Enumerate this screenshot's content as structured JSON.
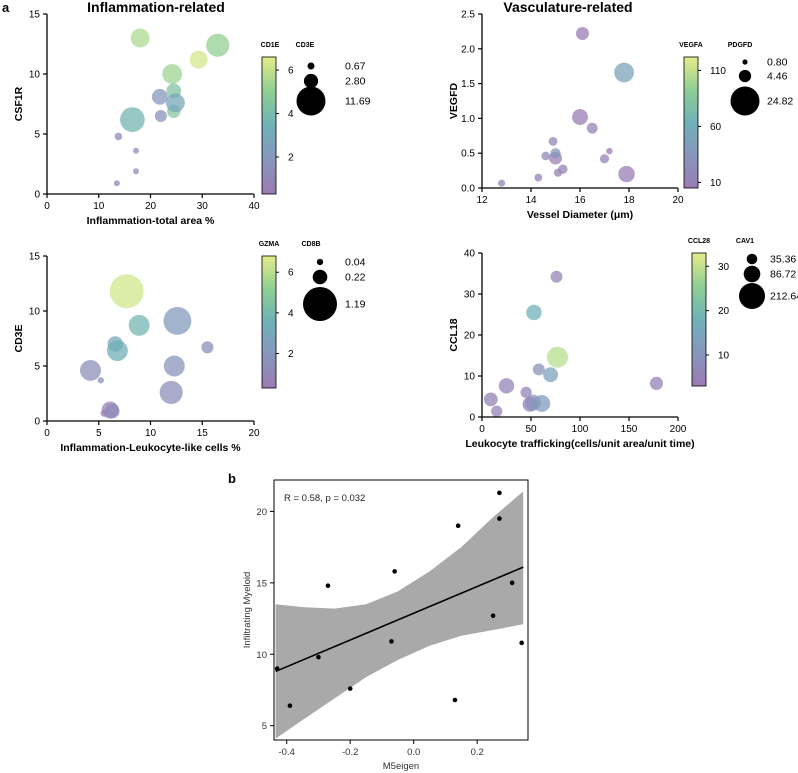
{
  "figure": {
    "panel_a_label": "a",
    "panel_b_label": "b",
    "section_left_title": "Inflammation-related",
    "section_right_title": "Vasculature-related"
  },
  "chart_data": [
    {
      "id": "p1",
      "type": "bubble",
      "title": "Inflammation-related",
      "xlabel": "Inflammation-total area %",
      "ylabel": "CSF1R",
      "xlim": [
        0,
        40
      ],
      "ylim": [
        0,
        15
      ],
      "xticks": [
        "0",
        "10",
        "20",
        "30",
        "40"
      ],
      "yticks": [
        "0",
        "5",
        "10",
        "15"
      ],
      "color_var": "CD1E",
      "color_range": [
        0.3,
        6.6
      ],
      "colorbar_ticks": [
        {
          "v": 2,
          "t": "2"
        },
        {
          "v": 4,
          "t": "4"
        },
        {
          "v": 6,
          "t": "6"
        }
      ],
      "size_var": "CD3E",
      "size_legend": [
        {
          "v": 0.67,
          "t": "0.67"
        },
        {
          "v": 2.8,
          "t": "2.80"
        },
        {
          "v": 11.69,
          "t": "11.69"
        }
      ],
      "points": [
        {
          "x": 13.5,
          "y": 0.9,
          "s": 0.5,
          "c": 1.0
        },
        {
          "x": 13.8,
          "y": 4.8,
          "s": 0.8,
          "c": 1.2
        },
        {
          "x": 17.2,
          "y": 3.6,
          "s": 0.5,
          "c": 1.2
        },
        {
          "x": 17.2,
          "y": 1.9,
          "s": 0.5,
          "c": 1.3
        },
        {
          "x": 16.5,
          "y": 6.2,
          "s": 8.5,
          "c": 3.7
        },
        {
          "x": 18.0,
          "y": 13.0,
          "s": 5.0,
          "c": 5.6
        },
        {
          "x": 21.8,
          "y": 8.1,
          "s": 3.5,
          "c": 2.0
        },
        {
          "x": 22.0,
          "y": 6.5,
          "s": 2.0,
          "c": 1.7
        },
        {
          "x": 24.2,
          "y": 10.0,
          "s": 5.5,
          "c": 5.3
        },
        {
          "x": 24.5,
          "y": 8.6,
          "s": 3.0,
          "c": 4.3
        },
        {
          "x": 24.5,
          "y": 6.9,
          "s": 2.5,
          "c": 4.6
        },
        {
          "x": 24.8,
          "y": 7.6,
          "s": 5.0,
          "c": 2.8
        },
        {
          "x": 29.3,
          "y": 11.2,
          "s": 4.5,
          "c": 6.3
        },
        {
          "x": 33.0,
          "y": 12.4,
          "s": 7.5,
          "c": 5.1
        }
      ]
    },
    {
      "id": "p2",
      "type": "bubble",
      "title": "Vasculature-related",
      "xlabel": "Vessel Diameter (μm)",
      "ylabel": "VEGFD",
      "xlim": [
        12,
        20
      ],
      "ylim": [
        0,
        2.5
      ],
      "xticks": [
        "12",
        "14",
        "16",
        "18",
        "20"
      ],
      "yticks": [
        "0.0",
        "0.5",
        "1.0",
        "1.5",
        "2.0",
        "2.5"
      ],
      "color_var": "VEGFA",
      "color_range": [
        5,
        122
      ],
      "colorbar_ticks": [
        {
          "v": 10,
          "t": "10"
        },
        {
          "v": 60,
          "t": "60"
        },
        {
          "v": 110,
          "t": "110"
        }
      ],
      "size_var": "PDGFD",
      "size_legend": [
        {
          "v": 0.8,
          "t": "0.80"
        },
        {
          "v": 4.46,
          "t": "4.46"
        },
        {
          "v": 24.82,
          "t": "24.82"
        }
      ],
      "points": [
        {
          "x": 12.8,
          "y": 0.07,
          "s": 1.5,
          "c": 15
        },
        {
          "x": 14.3,
          "y": 0.15,
          "s": 1.8,
          "c": 12
        },
        {
          "x": 14.6,
          "y": 0.46,
          "s": 2.2,
          "c": 18
        },
        {
          "x": 14.9,
          "y": 0.67,
          "s": 2.3,
          "c": 15
        },
        {
          "x": 15.0,
          "y": 0.43,
          "s": 5.0,
          "c": 10
        },
        {
          "x": 15.0,
          "y": 0.5,
          "s": 3.0,
          "c": 35
        },
        {
          "x": 15.1,
          "y": 0.22,
          "s": 2.0,
          "c": 14
        },
        {
          "x": 15.3,
          "y": 0.27,
          "s": 2.6,
          "c": 12
        },
        {
          "x": 16.0,
          "y": 1.02,
          "s": 7.5,
          "c": 8
        },
        {
          "x": 16.1,
          "y": 2.22,
          "s": 5.0,
          "c": 8
        },
        {
          "x": 16.5,
          "y": 0.86,
          "s": 3.5,
          "c": 12
        },
        {
          "x": 17.0,
          "y": 0.42,
          "s": 2.5,
          "c": 15
        },
        {
          "x": 17.2,
          "y": 0.53,
          "s": 1.2,
          "c": 8
        },
        {
          "x": 17.8,
          "y": 1.66,
          "s": 11.5,
          "c": 48
        },
        {
          "x": 17.9,
          "y": 0.2,
          "s": 8.0,
          "c": 8
        }
      ]
    },
    {
      "id": "p3",
      "type": "bubble",
      "xlabel": "Inflammation-Leukocyte-like cells %",
      "ylabel": "CD3E",
      "xlim": [
        0,
        20
      ],
      "ylim": [
        0,
        15
      ],
      "xticks": [
        "0",
        "5",
        "10",
        "15",
        "20"
      ],
      "yticks": [
        "0",
        "5",
        "10",
        "15"
      ],
      "color_var": "GZMA",
      "color_range": [
        0.3,
        6.8
      ],
      "colorbar_ticks": [
        {
          "v": 2,
          "t": "2"
        },
        {
          "v": 4,
          "t": "4"
        },
        {
          "v": 6,
          "t": "6"
        }
      ],
      "size_var": "CD8B",
      "size_legend": [
        {
          "v": 0.04,
          "t": "0.04"
        },
        {
          "v": 0.22,
          "t": "0.22"
        },
        {
          "v": 1.19,
          "t": "1.19"
        }
      ],
      "points": [
        {
          "x": 4.2,
          "y": 4.6,
          "s": 0.45,
          "c": 1.5
        },
        {
          "x": 5.2,
          "y": 3.7,
          "s": 0.04,
          "c": 1.4
        },
        {
          "x": 5.5,
          "y": 0.7,
          "s": 0.05,
          "c": 1.2
        },
        {
          "x": 6.1,
          "y": 1.0,
          "s": 0.3,
          "c": 0.6
        },
        {
          "x": 6.3,
          "y": 0.9,
          "s": 0.22,
          "c": 1.2
        },
        {
          "x": 6.6,
          "y": 7.0,
          "s": 0.25,
          "c": 3.0
        },
        {
          "x": 6.8,
          "y": 6.4,
          "s": 0.45,
          "c": 3.4
        },
        {
          "x": 7.7,
          "y": 11.8,
          "s": 1.19,
          "c": 6.4
        },
        {
          "x": 8.9,
          "y": 8.7,
          "s": 0.45,
          "c": 3.8
        },
        {
          "x": 12.0,
          "y": 2.6,
          "s": 0.55,
          "c": 1.4
        },
        {
          "x": 12.3,
          "y": 5.0,
          "s": 0.45,
          "c": 1.8
        },
        {
          "x": 12.6,
          "y": 9.1,
          "s": 0.8,
          "c": 2.2
        },
        {
          "x": 15.5,
          "y": 6.7,
          "s": 0.15,
          "c": 1.5
        }
      ]
    },
    {
      "id": "p4",
      "type": "bubble",
      "xlabel": "Leukocyte trafficking(cells/unit area/unit time)",
      "ylabel": "CCL18",
      "xlim": [
        0,
        200
      ],
      "ylim": [
        0,
        40
      ],
      "xticks": [
        "0",
        "50",
        "100",
        "150",
        "200"
      ],
      "yticks": [
        "0",
        "10",
        "20",
        "30",
        "40"
      ],
      "color_var": "CCL28",
      "color_range": [
        3,
        33
      ],
      "colorbar_ticks": [
        {
          "v": 10,
          "t": "10"
        },
        {
          "v": 20,
          "t": "20"
        },
        {
          "v": 30,
          "t": "30"
        }
      ],
      "size_var": "CAV1",
      "size_legend": [
        {
          "v": 35.36,
          "t": "35.36"
        },
        {
          "v": 86.72,
          "t": "86.72"
        },
        {
          "v": 212.64,
          "t": "212.64"
        }
      ],
      "points": [
        {
          "x": 9,
          "y": 4.3,
          "s": 60,
          "c": 5
        },
        {
          "x": 15,
          "y": 1.4,
          "s": 40,
          "c": 5
        },
        {
          "x": 25,
          "y": 7.6,
          "s": 75,
          "c": 6
        },
        {
          "x": 45,
          "y": 6.0,
          "s": 40,
          "c": 5
        },
        {
          "x": 49,
          "y": 3.1,
          "s": 70,
          "c": 5
        },
        {
          "x": 52,
          "y": 3.5,
          "s": 80,
          "c": 9
        },
        {
          "x": 53,
          "y": 25.5,
          "s": 75,
          "c": 18
        },
        {
          "x": 58,
          "y": 11.6,
          "s": 45,
          "c": 9
        },
        {
          "x": 61,
          "y": 3.3,
          "s": 90,
          "c": 12
        },
        {
          "x": 70,
          "y": 10.3,
          "s": 70,
          "c": 14
        },
        {
          "x": 76,
          "y": 34.2,
          "s": 45,
          "c": 6
        },
        {
          "x": 77,
          "y": 14.6,
          "s": 140,
          "c": 29
        },
        {
          "x": 178,
          "y": 8.2,
          "s": 55,
          "c": 5
        }
      ]
    },
    {
      "id": "p5",
      "type": "scatter",
      "xlabel": "M5eigen",
      "ylabel": "Infiltrating Myeloid",
      "annotation": "R = 0.58, p = 0.032",
      "xlim": [
        -0.44,
        0.36
      ],
      "ylim": [
        4,
        22.2
      ],
      "xticks": [
        {
          "v": -0.4,
          "t": "-0.4"
        },
        {
          "v": -0.2,
          "t": "-0.2"
        },
        {
          "v": 0,
          "t": "0.0"
        },
        {
          "v": 0.2,
          "t": "0.2"
        }
      ],
      "yticks": [
        {
          "v": 5,
          "t": "5"
        },
        {
          "v": 10,
          "t": "10"
        },
        {
          "v": 15,
          "t": "15"
        },
        {
          "v": 20,
          "t": "20"
        }
      ],
      "regression": {
        "x0": -0.435,
        "y0": 8.8,
        "x1": 0.345,
        "y1": 16.1
      },
      "ci_band": {
        "x": [
          -0.435,
          -0.35,
          -0.25,
          -0.15,
          -0.05,
          0.05,
          0.15,
          0.25,
          0.345
        ],
        "upper": [
          13.5,
          13.3,
          13.2,
          13.5,
          14.4,
          15.8,
          17.5,
          19.6,
          21.4
        ],
        "lower": [
          4.1,
          5.4,
          6.9,
          8.4,
          9.6,
          10.6,
          11.3,
          11.7,
          12.1
        ]
      },
      "points": [
        {
          "x": -0.43,
          "y": 9.0
        },
        {
          "x": -0.39,
          "y": 6.4
        },
        {
          "x": -0.3,
          "y": 9.8
        },
        {
          "x": -0.27,
          "y": 14.8
        },
        {
          "x": -0.2,
          "y": 7.6
        },
        {
          "x": -0.07,
          "y": 10.9
        },
        {
          "x": -0.06,
          "y": 15.8
        },
        {
          "x": 0.13,
          "y": 6.8
        },
        {
          "x": 0.14,
          "y": 19.0
        },
        {
          "x": 0.25,
          "y": 12.7
        },
        {
          "x": 0.27,
          "y": 19.5
        },
        {
          "x": 0.27,
          "y": 21.3
        },
        {
          "x": 0.31,
          "y": 15.0
        },
        {
          "x": 0.34,
          "y": 10.8
        }
      ]
    }
  ]
}
